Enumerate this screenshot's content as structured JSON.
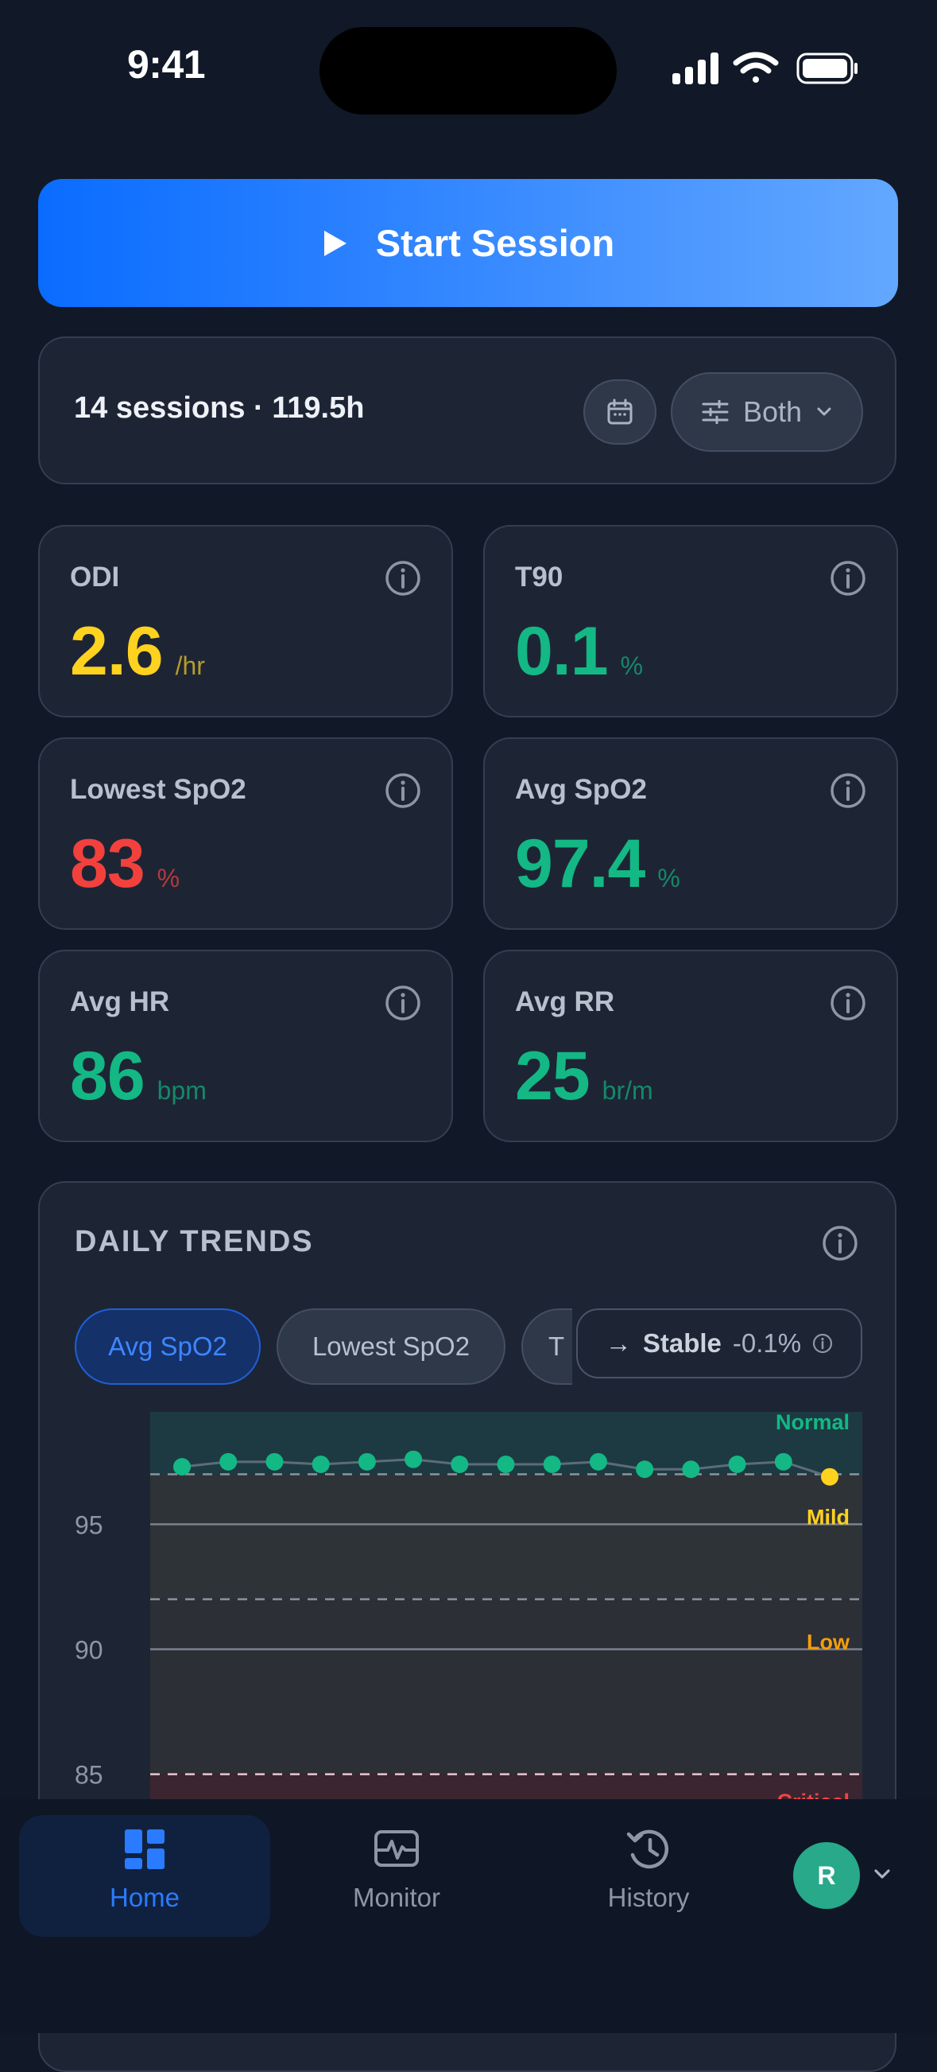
{
  "status_bar": {
    "time": "9:41"
  },
  "start_session": {
    "label": "Start Session"
  },
  "summary": {
    "text": "14 sessions · 119.5h",
    "filter_label": "Both"
  },
  "metrics": [
    {
      "title": "ODI",
      "value": "2.6",
      "unit": "/hr",
      "color": "#ffd21f",
      "unit_color": "#b79b2c"
    },
    {
      "title": "T90",
      "value": "0.1",
      "unit": "%",
      "color": "#13b884",
      "unit_color": "#168867"
    },
    {
      "title": "Lowest SpO2",
      "value": "83",
      "unit": "%",
      "color": "#f2413d",
      "unit_color": "#b53a39"
    },
    {
      "title": "Avg SpO2",
      "value": "97.4",
      "unit": "%",
      "color": "#13b884",
      "unit_color": "#168867"
    },
    {
      "title": "Avg HR",
      "value": "86",
      "unit": "bpm",
      "color": "#13b884",
      "unit_color": "#168867"
    },
    {
      "title": "Avg RR",
      "value": "25",
      "unit": "br/m",
      "color": "#13b884",
      "unit_color": "#168867"
    }
  ],
  "trends": {
    "title": "DAILY TRENDS",
    "tabs": [
      "Avg SpO2",
      "Lowest SpO2",
      "T"
    ],
    "trend_badge": {
      "arrow": "→",
      "label": "Stable",
      "delta": "-0.1%"
    }
  },
  "chart_data": {
    "type": "scatter",
    "title": "",
    "xlabel": "",
    "ylabel": "",
    "yticks": [
      95,
      90,
      85
    ],
    "ylim": [
      84,
      99.5
    ],
    "zones": [
      {
        "label": "Normal",
        "from": 97,
        "color": "#13b884"
      },
      {
        "label": "Mild",
        "from": 92,
        "color": "#ffd21f"
      },
      {
        "label": "Low",
        "from": 85,
        "color": "#f59e0b"
      },
      {
        "label": "Critical",
        "from": 0,
        "color": "#ef4444"
      }
    ],
    "x": [
      1,
      2,
      3,
      4,
      5,
      6,
      7,
      8,
      9,
      10,
      11,
      12,
      13,
      14,
      15
    ],
    "values": [
      97.3,
      97.5,
      97.5,
      97.4,
      97.5,
      97.6,
      97.4,
      97.4,
      97.4,
      97.5,
      97.2,
      97.2,
      97.4,
      97.5,
      96.9
    ],
    "point_colors": [
      "#13b884",
      "#13b884",
      "#13b884",
      "#13b884",
      "#13b884",
      "#13b884",
      "#13b884",
      "#13b884",
      "#13b884",
      "#13b884",
      "#13b884",
      "#13b884",
      "#13b884",
      "#13b884",
      "#ffd21f"
    ]
  },
  "nav": {
    "items": [
      {
        "label": "Home",
        "active": true
      },
      {
        "label": "Monitor",
        "active": false
      },
      {
        "label": "History",
        "active": false
      }
    ],
    "avatar_initial": "R"
  }
}
